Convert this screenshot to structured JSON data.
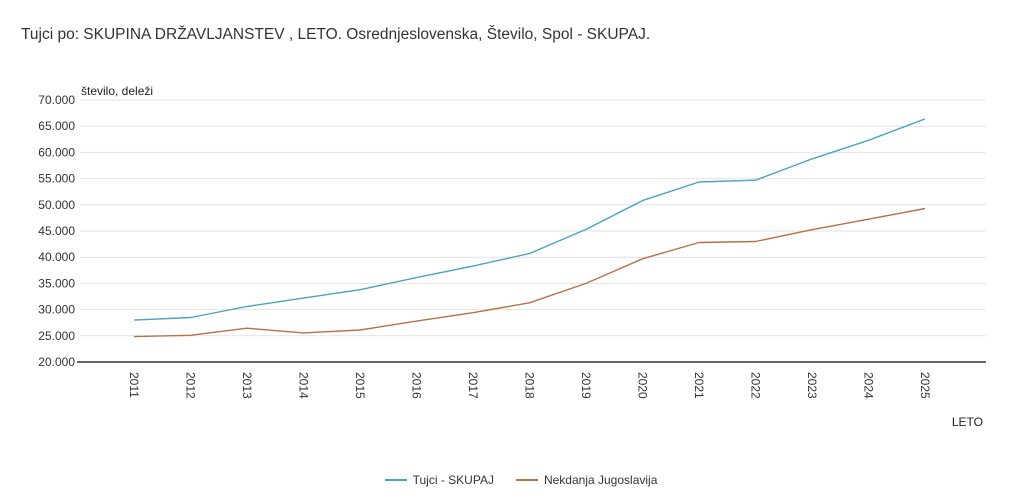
{
  "title": "Tujci po: SKUPINA DRŽAVLJANSTEV ,  LETO. Osrednjeslovenska, Število, Spol - SKUPAJ.",
  "chart_data": {
    "type": "line",
    "title": "Tujci po: SKUPINA DRŽAVLJANSTEV ,  LETO. Osrednjeslovenska, Število, Spol - SKUPAJ.",
    "xlabel": "LETO",
    "ylabel": "število, deleži",
    "categories": [
      "2011",
      "2012",
      "2013",
      "2014",
      "2015",
      "2016",
      "2017",
      "2018",
      "2019",
      "2020",
      "2021",
      "2022",
      "2023",
      "2024",
      "2025"
    ],
    "ylim": [
      20000,
      70000
    ],
    "yticks": [
      20000,
      25000,
      30000,
      35000,
      40000,
      45000,
      50000,
      55000,
      60000,
      65000,
      70000
    ],
    "ytick_labels": [
      "20.000",
      "25.000",
      "30.000",
      "35.000",
      "40.000",
      "45.000",
      "50.000",
      "55.000",
      "60.000",
      "65.000",
      "70.000"
    ],
    "grid": true,
    "legend_position": "bottom-center",
    "series": [
      {
        "name": "Tujci - SKUPAJ",
        "color": "#4aa3c0",
        "values": [
          28000,
          28500,
          30600,
          32200,
          33800,
          36100,
          38300,
          40700,
          45300,
          50800,
          54350,
          54700,
          58750,
          62300,
          66400
        ]
      },
      {
        "name": "Nekdanja Jugoslavija",
        "color": "#b8704a",
        "values": [
          24850,
          25100,
          26450,
          25550,
          26100,
          27800,
          29400,
          31300,
          35000,
          39700,
          42800,
          43000,
          45250,
          47250,
          49300
        ]
      }
    ]
  }
}
